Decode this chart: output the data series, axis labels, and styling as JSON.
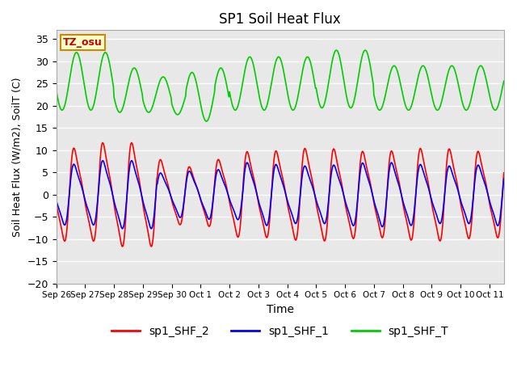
{
  "title": "SP1 Soil Heat Flux",
  "xlabel": "Time",
  "ylabel": "Soil Heat Flux (W/m2), SoilT (C)",
  "ylim": [
    -20,
    37
  ],
  "yticks": [
    -20,
    -15,
    -10,
    -5,
    0,
    5,
    10,
    15,
    20,
    25,
    30,
    35
  ],
  "background_color": "#ffffff",
  "plot_bg_color": "#e8e8e8",
  "grid_color": "#ffffff",
  "annotation_text": "TZ_osu",
  "annotation_bg": "#ffffcc",
  "annotation_border": "#cc8800",
  "annotation_text_color": "#cc0000",
  "line_colors": {
    "sp1_SHF_2": "#ff0000",
    "sp1_SHF_1": "#0000ff",
    "sp1_SHF_T": "#00cc00"
  },
  "xtick_labels": [
    "Sep 26",
    "Sep 27",
    "Sep 28",
    "Sep 29",
    "Sep 30",
    "Oct 1",
    "Oct 2",
    "Oct 3",
    "Oct 4",
    "Oct 5",
    "Oct 6",
    "Oct 7",
    "Oct 8",
    "Oct 9",
    "Oct 10",
    "Oct 11"
  ],
  "n_days": 15.5
}
